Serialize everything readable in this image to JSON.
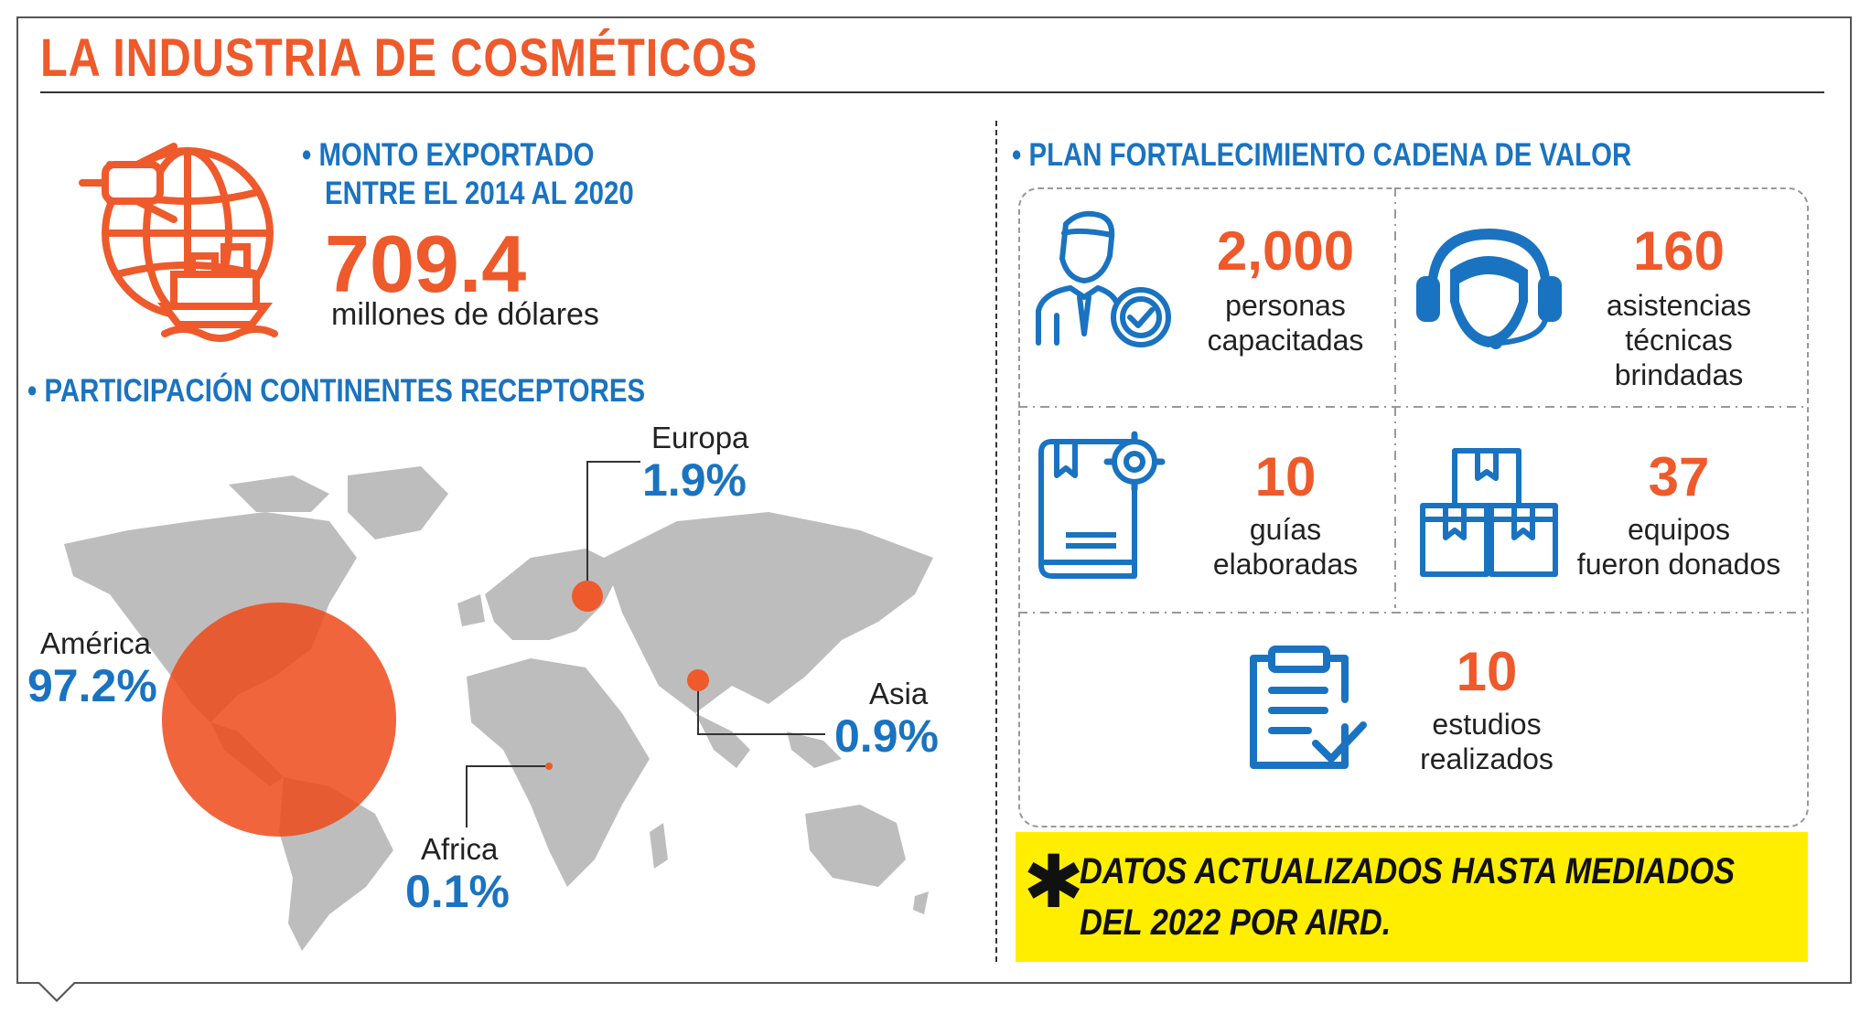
{
  "title": "LA INDUSTRIA DE COSMÉTICOS",
  "export": {
    "heading_line1": "• MONTO EXPORTADO",
    "heading_line2": "ENTRE EL 2014 AL 2020",
    "amount": "709.4",
    "unit": "millones de dólares"
  },
  "continents": {
    "heading": "• PARTICIPACIÓN CONTINENTES RECEPTORES",
    "items": [
      {
        "name": "Europa",
        "pct": "1.9%"
      },
      {
        "name": "América",
        "pct": "97.2%"
      },
      {
        "name": "Asia",
        "pct": "0.9%"
      },
      {
        "name": "Africa",
        "pct": "0.1%"
      }
    ]
  },
  "plan": {
    "heading": "• PLAN FORTALECIMIENTO CADENA DE VALOR",
    "stats": [
      {
        "number": "2,000",
        "line1": "personas",
        "line2": "capacitadas",
        "line3": "",
        "icon": "trained-person-icon"
      },
      {
        "number": "160",
        "line1": "asistencias",
        "line2": "técnicas",
        "line3": "brindadas",
        "icon": "headset-agent-icon"
      },
      {
        "number": "10",
        "line1": "guías",
        "line2": "elaboradas",
        "line3": "",
        "icon": "guide-book-icon"
      },
      {
        "number": "37",
        "line1": "equipos",
        "line2": "fueron donados",
        "line3": "",
        "icon": "boxes-icon"
      },
      {
        "number": "10",
        "line1": "estudios",
        "line2": "realizados",
        "line3": "",
        "icon": "clipboard-check-icon"
      }
    ]
  },
  "note": {
    "line1": "DATOS ACTUALIZADOS HASTA MEDIADOS",
    "line2": "DEL 2022 POR AIRD."
  },
  "colors": {
    "orange": "#ee5a2b",
    "blue": "#1a73c0",
    "yellow": "#ffee00",
    "map_gray": "#bdbdbd"
  }
}
